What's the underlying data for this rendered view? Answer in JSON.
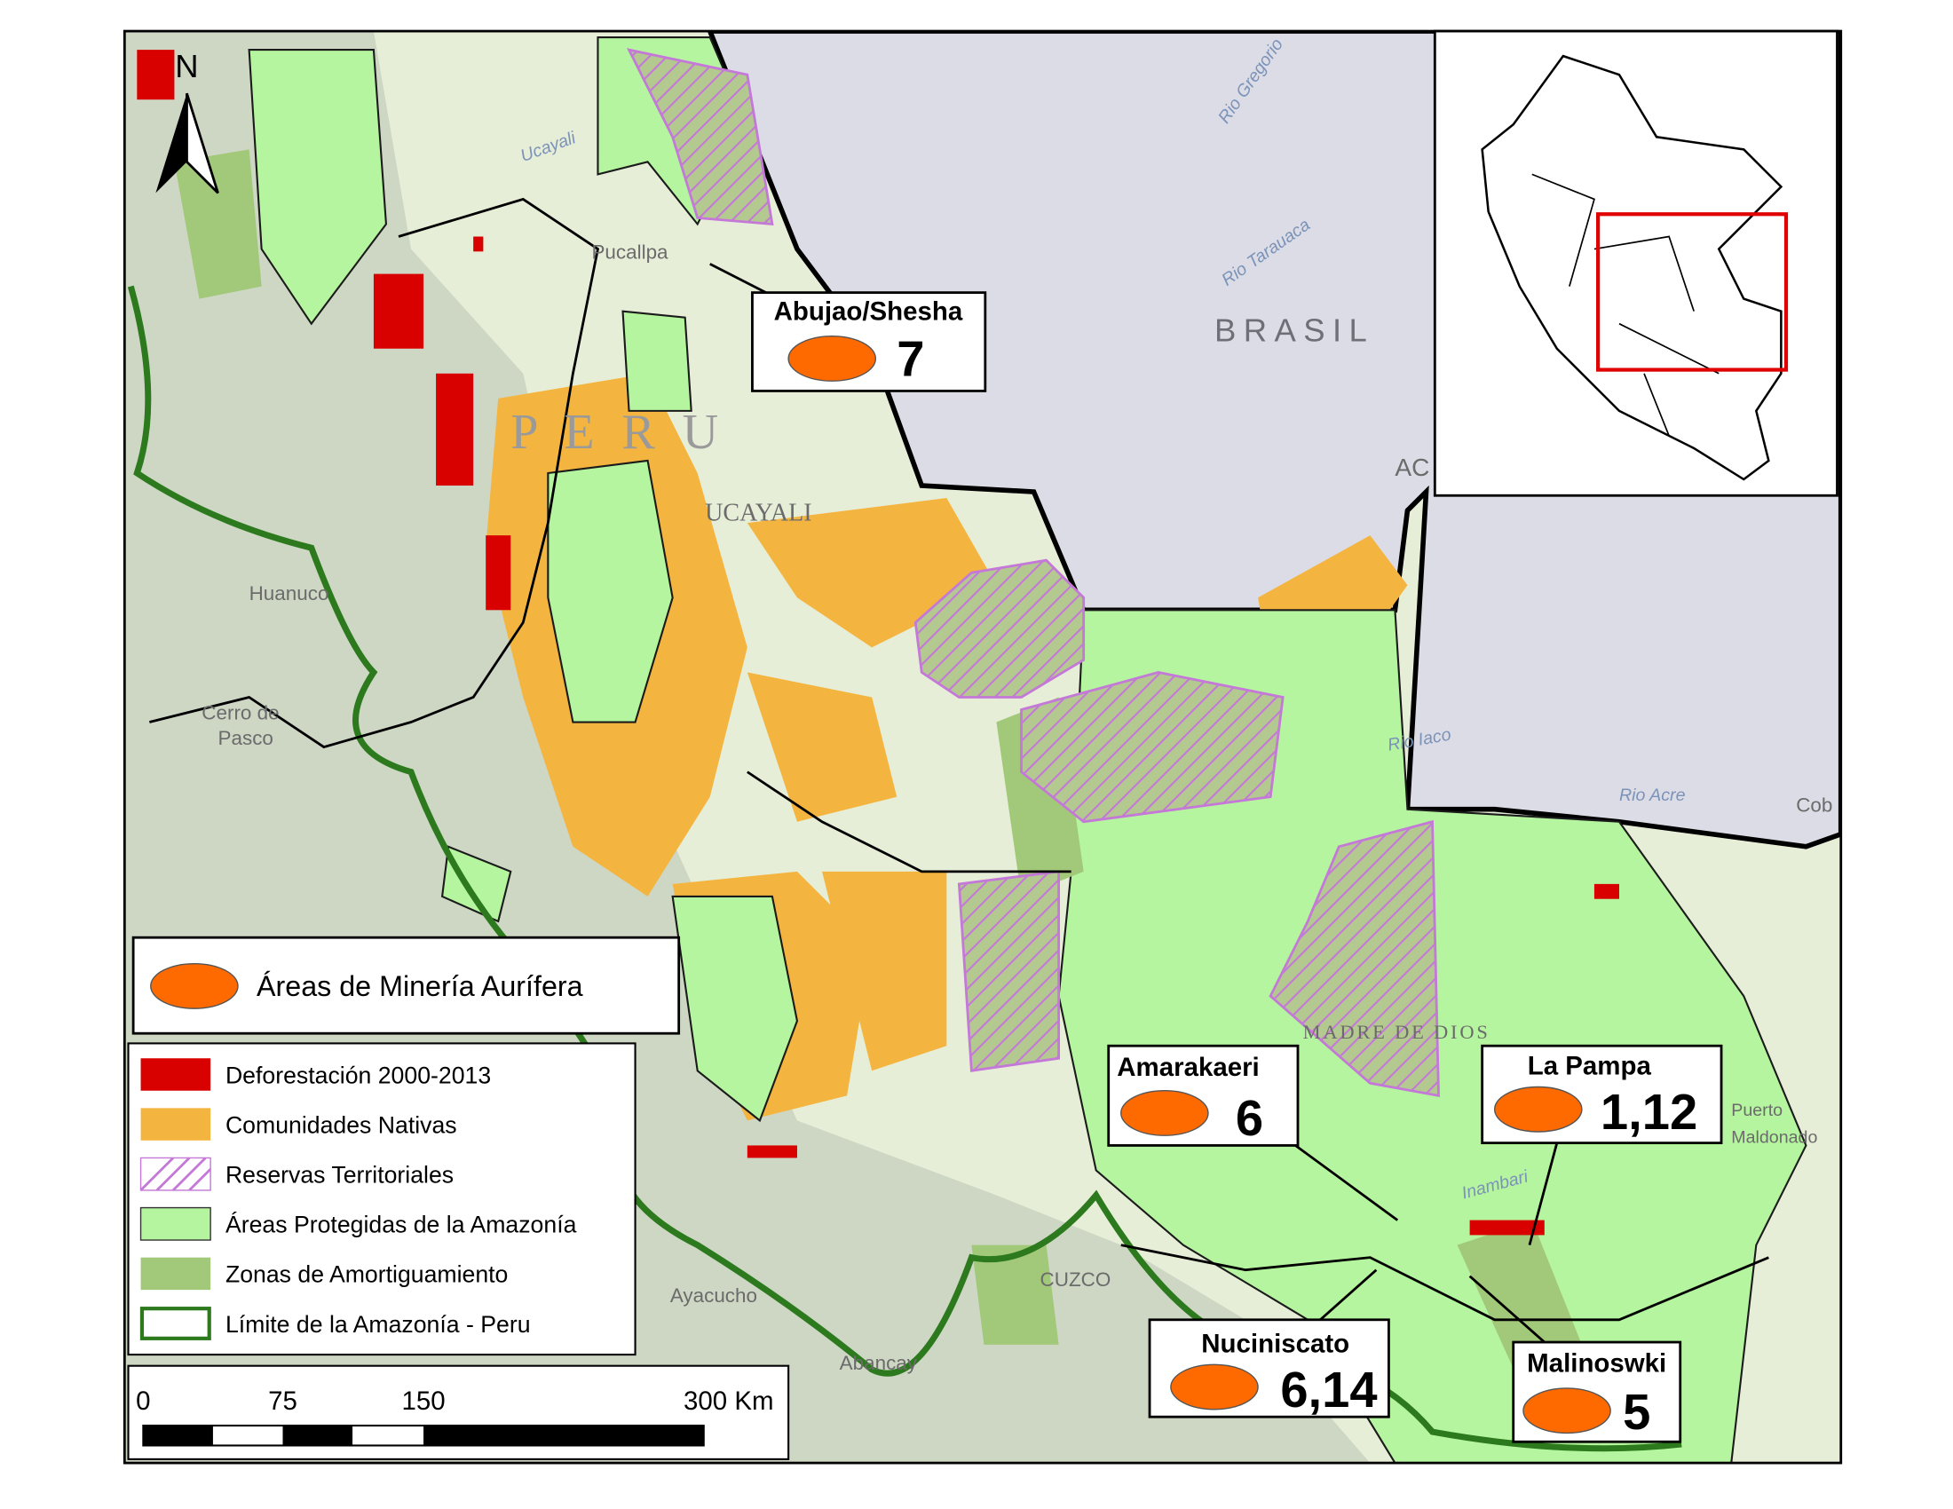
{
  "map": {
    "north": "N",
    "labels": [
      "BRASIL",
      "P E R U",
      "UCAYALI",
      "Pucallpa",
      "Huanuco",
      "Cerro de",
      "Pasco",
      "Ayacucho",
      "Abancay",
      "CUZCO",
      "MADRE DE DIOS",
      "Rio Gregorio",
      "Rio Tarauaca",
      "Rio Iaco",
      "Rio Acre",
      "Inambari",
      "Puerto",
      "Maldonado",
      "Cob",
      "AC",
      "Ucayali"
    ]
  },
  "callouts": [
    {
      "name": "Abujao/Shesha",
      "value": "7"
    },
    {
      "name": "Amarakaeri",
      "value": "6"
    },
    {
      "name": "La Pampa",
      "value": "1,12"
    },
    {
      "name": "Nuciniscato",
      "value": "6,14"
    },
    {
      "name": "Malinoswki",
      "value": "5"
    }
  ],
  "legend": {
    "mining": "Áreas de Minería Aurífera",
    "items": [
      "Deforestación 2000-2013",
      "Comunidades Nativas",
      "Reservas Territoriales",
      "Áreas Protegidas de la Amazonía",
      "Zonas de Amortiguamiento",
      "Límite de la Amazonía - Peru"
    ]
  },
  "scale_bar": [
    "0",
    "75",
    "150",
    "300 Km"
  ]
}
